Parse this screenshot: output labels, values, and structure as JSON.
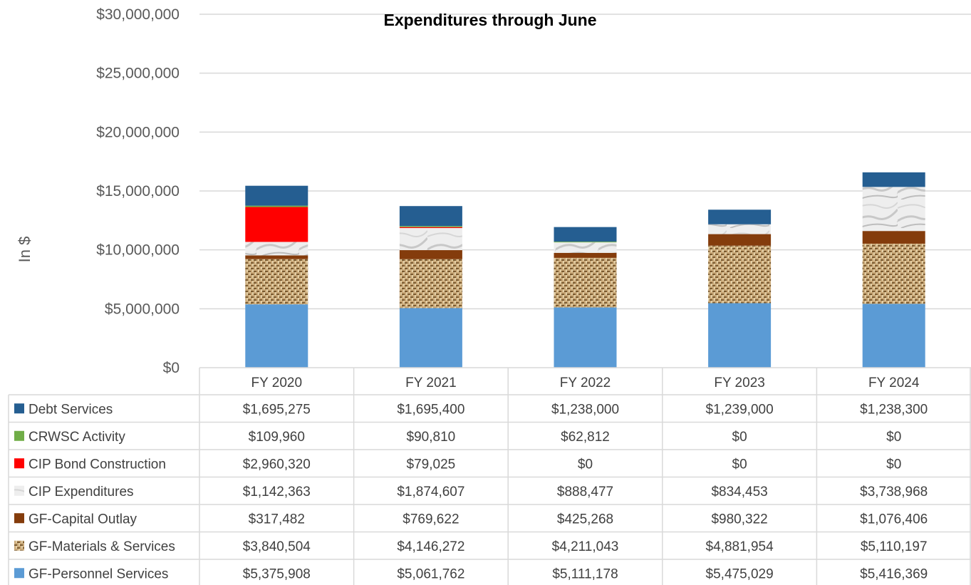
{
  "chart_data": {
    "type": "bar",
    "stacked": true,
    "title": "Expenditures through June",
    "xlabel": "",
    "ylabel": "In $",
    "ylim": [
      0,
      30000000
    ],
    "yticks": [
      "$0",
      "$5,000,000",
      "$10,000,000",
      "$15,000,000",
      "$20,000,000",
      "$25,000,000",
      "$30,000,000"
    ],
    "grid": true,
    "legend": "data-table-left",
    "categories": [
      "FY 2020",
      "FY 2021",
      "FY 2022",
      "FY 2023",
      "FY 2024"
    ],
    "series": [
      {
        "name": "GF-Personnel Services",
        "color": "#5b9bd5",
        "pattern": "solid",
        "values": [
          5375908,
          5061762,
          5111178,
          5475029,
          5416369
        ],
        "labels": [
          "$5,375,908",
          "$5,061,762",
          "$5,111,178",
          "$5,475,029",
          "$5,416,369"
        ]
      },
      {
        "name": "GF-Materials & Services",
        "color": "#b8955f",
        "pattern": "burlap",
        "values": [
          3840504,
          4146272,
          4211043,
          4881954,
          5110197
        ],
        "labels": [
          "$3,840,504",
          "$4,146,272",
          "$4,211,043",
          "$4,881,954",
          "$5,110,197"
        ]
      },
      {
        "name": "GF-Capital Outlay",
        "color": "#843c0c",
        "pattern": "solid",
        "values": [
          317482,
          769622,
          425268,
          980322,
          1076406
        ],
        "labels": [
          "$317,482",
          "$769,622",
          "$425,268",
          "$980,322",
          "$1,076,406"
        ]
      },
      {
        "name": "CIP Expenditures",
        "color": "#e8e8e8",
        "pattern": "marble",
        "values": [
          1142363,
          1874607,
          888477,
          834453,
          3738968
        ],
        "labels": [
          "$1,142,363",
          "$1,874,607",
          "$888,477",
          "$834,453",
          "$3,738,968"
        ]
      },
      {
        "name": "CIP Bond Construction",
        "color": "#ff0000",
        "pattern": "solid",
        "values": [
          2960320,
          79025,
          0,
          0,
          0
        ],
        "labels": [
          "$2,960,320",
          "$79,025",
          "$0",
          "$0",
          "$0"
        ]
      },
      {
        "name": "CRWSC Activity",
        "color": "#70ad47",
        "pattern": "solid",
        "values": [
          109960,
          90810,
          62812,
          0,
          0
        ],
        "labels": [
          "$109,960",
          "$90,810",
          "$62,812",
          "$0",
          "$0"
        ]
      },
      {
        "name": "Debt Services",
        "color": "#255e91",
        "pattern": "solid",
        "values": [
          1695275,
          1695400,
          1238000,
          1239000,
          1238300
        ],
        "labels": [
          "$1,695,275",
          "$1,695,400",
          "$1,238,000",
          "$1,239,000",
          "$1,238,300"
        ]
      }
    ]
  }
}
